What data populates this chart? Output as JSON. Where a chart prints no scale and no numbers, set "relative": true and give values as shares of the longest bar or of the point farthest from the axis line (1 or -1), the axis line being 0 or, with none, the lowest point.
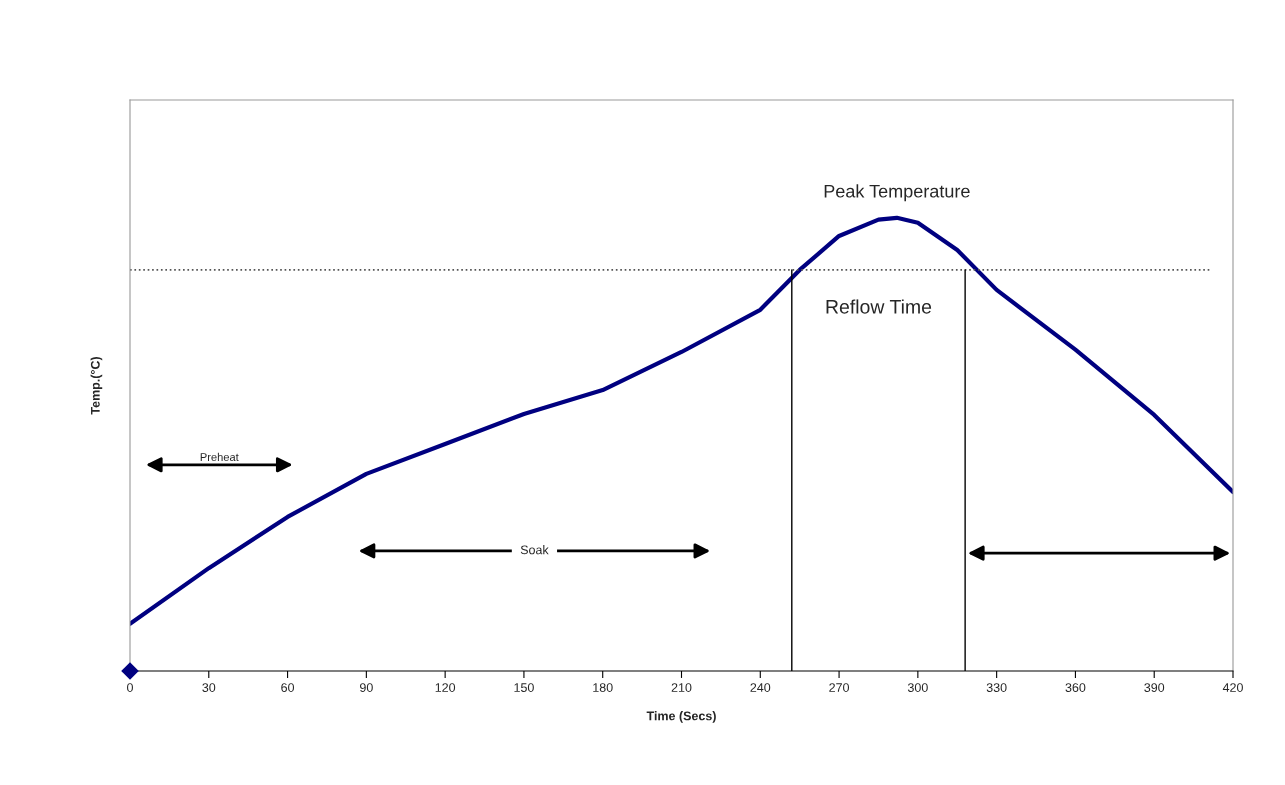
{
  "chart_data": {
    "type": "line",
    "relative": true,
    "xlabel": "Time (Secs)",
    "ylabel": "Temp.(°C)",
    "xlim": [
      0,
      420
    ],
    "xticks": [
      0,
      30,
      60,
      90,
      120,
      150,
      180,
      210,
      240,
      270,
      300,
      330,
      360,
      390,
      420
    ],
    "grid": false,
    "line_style": "solid",
    "marker": "none",
    "series": [
      {
        "color": "#000080",
        "x": [
          0,
          30,
          60,
          90,
          120,
          150,
          180,
          210,
          240,
          255,
          270,
          285,
          292,
          300,
          315,
          330,
          360,
          390,
          420
        ],
        "values": [
          0.104,
          0.227,
          0.34,
          0.435,
          0.501,
          0.567,
          0.62,
          0.704,
          0.797,
          0.885,
          0.96,
          0.996,
          1.0,
          0.989,
          0.929,
          0.841,
          0.709,
          0.565,
          0.395
        ]
      },
      {
        "type": "scatter",
        "marker": "diamond",
        "color": "#000080",
        "x": [
          0
        ],
        "values": [
          0
        ]
      }
    ],
    "ref_lines": [
      {
        "axis": "y",
        "value": 0.885,
        "line_style": "dotted",
        "color": "#555555"
      },
      {
        "axis": "x",
        "value": 252,
        "line_style": "solid",
        "color": "#000000"
      },
      {
        "axis": "x",
        "value": 318,
        "line_style": "solid",
        "color": "#000000"
      }
    ],
    "annotations": [
      {
        "text": "Peak Temperature",
        "x": 292,
        "y": 1.0
      },
      "Reflow Time",
      "Preheat",
      "Soak"
    ]
  }
}
